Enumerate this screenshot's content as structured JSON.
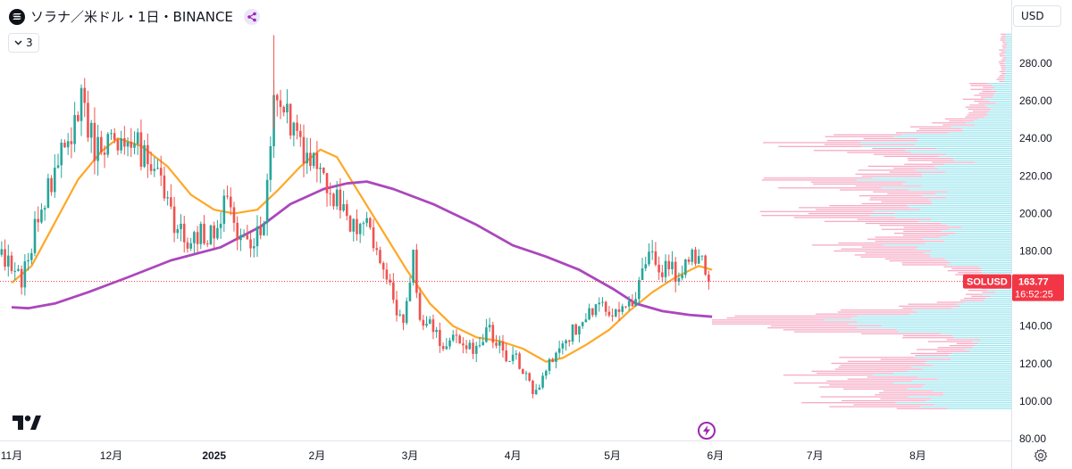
{
  "header": {
    "title": "ソラナ／米ドル・1日・BINANCE",
    "indicator_count": "3",
    "currency": "USD"
  },
  "colors": {
    "up": "#26a69a",
    "down": "#ef5350",
    "ma_fast": "#ffa726",
    "ma_slow": "#ab47bc",
    "vp_up": "#80deea",
    "vp_down": "#f48fb1",
    "price_label": "#f23645"
  },
  "price_label": {
    "symbol": "SOLUSD",
    "price": "163.77",
    "countdown": "16:52:25"
  },
  "chart_data": {
    "type": "candlestick",
    "title": "ソラナ／米ドル・1日・BINANCE",
    "x_range": [
      "2024-11-01",
      "2025-09-14"
    ],
    "y_range": [
      80,
      300
    ],
    "y_ticks": [
      80,
      100,
      120,
      140,
      160,
      180,
      200,
      220,
      240,
      260,
      280
    ],
    "y_tick_labels": [
      "80.00",
      "100.00",
      "120.00",
      "140.00",
      "160.00",
      "180.00",
      "200.00",
      "220.00",
      "240.00",
      "260.00",
      "280.00"
    ],
    "x_ticks": [
      {
        "date": "2024-11-01",
        "label": "11月"
      },
      {
        "date": "2024-12-01",
        "label": "12月"
      },
      {
        "date": "2025-01-01",
        "label": "2025"
      },
      {
        "date": "2025-02-01",
        "label": "2月"
      },
      {
        "date": "2025-03-01",
        "label": "3月"
      },
      {
        "date": "2025-04-01",
        "label": "4月"
      },
      {
        "date": "2025-05-01",
        "label": "5月"
      },
      {
        "date": "2025-06-01",
        "label": "6月"
      },
      {
        "date": "2025-07-01",
        "label": "7月"
      },
      {
        "date": "2025-08-01",
        "label": "8月"
      }
    ],
    "last_price": 163.77,
    "close_path": [
      [
        "2024-10-29",
        178
      ],
      [
        "2024-11-04",
        164
      ],
      [
        "2024-11-08",
        192
      ],
      [
        "2024-11-12",
        215
      ],
      [
        "2024-11-18",
        238
      ],
      [
        "2024-11-22",
        258
      ],
      [
        "2024-11-26",
        235
      ],
      [
        "2024-11-30",
        238
      ],
      [
        "2024-12-04",
        232
      ],
      [
        "2024-12-08",
        238
      ],
      [
        "2024-12-12",
        228
      ],
      [
        "2024-12-16",
        218
      ],
      [
        "2024-12-20",
        195
      ],
      [
        "2024-12-24",
        186
      ],
      [
        "2024-12-28",
        190
      ],
      [
        "2025-01-01",
        188
      ],
      [
        "2025-01-05",
        210
      ],
      [
        "2025-01-09",
        186
      ],
      [
        "2025-01-13",
        184
      ],
      [
        "2025-01-16",
        192
      ],
      [
        "2025-01-19",
        262
      ],
      [
        "2025-01-22",
        255
      ],
      [
        "2025-01-27",
        237
      ],
      [
        "2025-01-31",
        225
      ],
      [
        "2025-02-04",
        218
      ],
      [
        "2025-02-08",
        203
      ],
      [
        "2025-02-12",
        195
      ],
      [
        "2025-02-16",
        198
      ],
      [
        "2025-02-20",
        176
      ],
      [
        "2025-02-24",
        155
      ],
      [
        "2025-02-27",
        140
      ],
      [
        "2025-03-02",
        178
      ],
      [
        "2025-03-04",
        145
      ],
      [
        "2025-03-08",
        138
      ],
      [
        "2025-03-11",
        126
      ],
      [
        "2025-03-15",
        133
      ],
      [
        "2025-03-20",
        129
      ],
      [
        "2025-03-25",
        138
      ],
      [
        "2025-03-30",
        125
      ],
      [
        "2025-04-03",
        120
      ],
      [
        "2025-04-07",
        103
      ],
      [
        "2025-04-10",
        115
      ],
      [
        "2025-04-14",
        128
      ],
      [
        "2025-04-18",
        135
      ],
      [
        "2025-04-22",
        145
      ],
      [
        "2025-04-26",
        150
      ],
      [
        "2025-04-30",
        146
      ],
      [
        "2025-05-04",
        148
      ],
      [
        "2025-05-07",
        152
      ],
      [
        "2025-05-10",
        172
      ],
      [
        "2025-05-13",
        178
      ],
      [
        "2025-05-17",
        170
      ],
      [
        "2025-05-20",
        168
      ],
      [
        "2025-05-23",
        175
      ],
      [
        "2025-05-27",
        178
      ],
      [
        "2025-05-30",
        163.77
      ]
    ],
    "series": [
      {
        "points": [
          [
            "2024-11-01",
            163
          ],
          [
            "2024-11-07",
            172
          ],
          [
            "2024-11-14",
            195
          ],
          [
            "2024-11-21",
            218
          ],
          [
            "2024-11-28",
            233
          ],
          [
            "2024-12-03",
            240
          ],
          [
            "2024-12-10",
            236
          ],
          [
            "2024-12-18",
            225
          ],
          [
            "2024-12-25",
            210
          ],
          [
            "2025-01-01",
            202
          ],
          [
            "2025-01-07",
            200
          ],
          [
            "2025-01-14",
            202
          ],
          [
            "2025-01-20",
            212
          ],
          [
            "2025-01-27",
            225
          ],
          [
            "2025-02-02",
            234
          ],
          [
            "2025-02-07",
            230
          ],
          [
            "2025-02-14",
            210
          ],
          [
            "2025-02-21",
            190
          ],
          [
            "2025-02-28",
            170
          ],
          [
            "2025-03-07",
            152
          ],
          [
            "2025-03-14",
            140
          ],
          [
            "2025-03-21",
            134
          ],
          [
            "2025-03-28",
            132
          ],
          [
            "2025-04-04",
            128
          ],
          [
            "2025-04-11",
            121
          ],
          [
            "2025-04-16",
            123
          ],
          [
            "2025-04-23",
            130
          ],
          [
            "2025-04-30",
            138
          ],
          [
            "2025-05-06",
            148
          ],
          [
            "2025-05-13",
            158
          ],
          [
            "2025-05-20",
            166
          ],
          [
            "2025-05-27",
            172
          ],
          [
            "2025-05-31",
            170
          ]
        ]
      },
      {
        "points": [
          [
            "2024-11-01",
            150
          ],
          [
            "2024-11-06",
            149.5
          ],
          [
            "2024-11-14",
            152
          ],
          [
            "2024-11-24",
            158
          ],
          [
            "2024-12-06",
            166
          ],
          [
            "2024-12-19",
            175
          ],
          [
            "2025-01-03",
            182
          ],
          [
            "2025-01-15",
            193
          ],
          [
            "2025-01-24",
            205
          ],
          [
            "2025-02-03",
            213
          ],
          [
            "2025-02-10",
            216
          ],
          [
            "2025-02-16",
            217
          ],
          [
            "2025-02-24",
            213
          ],
          [
            "2025-03-08",
            205
          ],
          [
            "2025-03-21",
            194
          ],
          [
            "2025-04-01",
            183
          ],
          [
            "2025-04-11",
            177
          ],
          [
            "2025-04-21",
            170
          ],
          [
            "2025-05-01",
            160
          ],
          [
            "2025-05-08",
            152
          ],
          [
            "2025-05-16",
            148
          ],
          [
            "2025-05-24",
            146
          ],
          [
            "2025-05-31",
            145
          ]
        ]
      }
    ],
    "volume_profile_peaks": [
      98,
      110,
      120,
      140,
      145,
      180,
      200,
      217,
      238
    ]
  }
}
